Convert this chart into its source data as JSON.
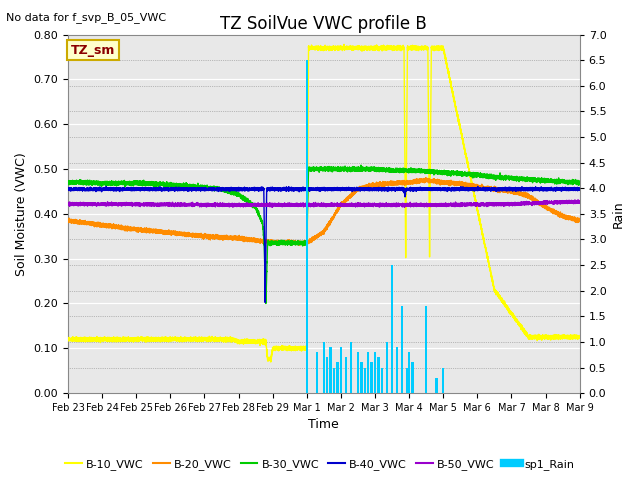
{
  "title": "TZ SoilVue VWC profile B",
  "no_data_text": "No data for f_svp_B_05_VWC",
  "tz_sm_label": "TZ_sm",
  "xlabel": "Time",
  "ylabel": "Soil Moisture (VWC)",
  "ylabel_right": "Rain",
  "ylim_left": [
    0.0,
    0.8
  ],
  "ylim_right": [
    0.0,
    7.0
  ],
  "yticks_left": [
    0.0,
    0.1,
    0.2,
    0.3,
    0.4,
    0.5,
    0.6,
    0.7,
    0.8
  ],
  "yticks_right": [
    0.0,
    0.5,
    1.0,
    1.5,
    2.0,
    2.5,
    3.0,
    3.5,
    4.0,
    4.5,
    5.0,
    5.5,
    6.0,
    6.5,
    7.0
  ],
  "xtick_labels": [
    "Feb 23",
    "Feb 24",
    "Feb 25",
    "Feb 26",
    "Feb 27",
    "Feb 28",
    "Feb 29",
    "Mar 1",
    "Mar 2",
    "Mar 3",
    "Mar 4",
    "Mar 5",
    "Mar 6",
    "Mar 7",
    "Mar 8",
    "Mar 9"
  ],
  "colors": {
    "B10": "#ffff00",
    "B20": "#ff8c00",
    "B30": "#00cc00",
    "B40": "#0000cc",
    "B50": "#9900cc",
    "Rain": "#00ccff"
  },
  "bg_color": "#e8e8e8",
  "legend_entries": [
    "B-10_VWC",
    "B-20_VWC",
    "B-30_VWC",
    "B-40_VWC",
    "B-50_VWC",
    "sp1_Rain"
  ]
}
